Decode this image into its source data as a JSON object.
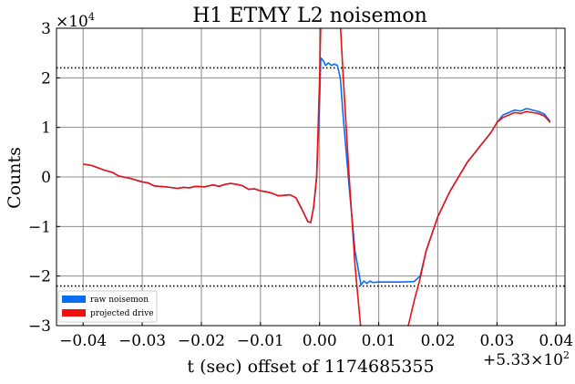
{
  "chart_data": {
    "type": "line",
    "title": "H1 ETMY L2 noisemon",
    "xlabel": "t (sec) offset of 1174685355",
    "ylabel": "Counts",
    "x_offset_text": "+5.33×10",
    "x_offset_exp": "2",
    "y_scale_text": "×10",
    "y_scale_exp": "4",
    "xlim": [
      -0.0445,
      0.0415
    ],
    "ylim": [
      -30000,
      30000
    ],
    "x_ticks": [
      -0.04,
      -0.03,
      -0.02,
      -0.01,
      0.0,
      0.01,
      0.02,
      0.03,
      0.04
    ],
    "x_tick_labels": [
      "−0.04",
      "−0.03",
      "−0.02",
      "−0.01",
      "0.00",
      "0.01",
      "0.02",
      "0.03",
      "0.04"
    ],
    "y_ticks": [
      -30000,
      -20000,
      -10000,
      0,
      10000,
      20000,
      30000
    ],
    "y_tick_labels": [
      "−3",
      "−2",
      "−1",
      "0",
      "1",
      "2",
      "3"
    ],
    "grid": true,
    "legend_position": "bottom-left",
    "thresholds": [
      22000,
      -22000
    ],
    "series": [
      {
        "name": "raw noisemon",
        "color": "#0a6ef5",
        "points": [
          [
            -0.04,
            2600
          ],
          [
            -0.0385,
            2300
          ],
          [
            -0.0365,
            1400
          ],
          [
            -0.035,
            900
          ],
          [
            -0.034,
            200
          ],
          [
            -0.032,
            -300
          ],
          [
            -0.03,
            -1000
          ],
          [
            -0.029,
            -1200
          ],
          [
            -0.028,
            -1800
          ],
          [
            -0.026,
            -2000
          ],
          [
            -0.024,
            -2300
          ],
          [
            -0.023,
            -2100
          ],
          [
            -0.022,
            -2200
          ],
          [
            -0.021,
            -1900
          ],
          [
            -0.0195,
            -2000
          ],
          [
            -0.018,
            -1600
          ],
          [
            -0.017,
            -1900
          ],
          [
            -0.016,
            -1500
          ],
          [
            -0.015,
            -1300
          ],
          [
            -0.014,
            -1500
          ],
          [
            -0.013,
            -1800
          ],
          [
            -0.012,
            -2500
          ],
          [
            -0.011,
            -2400
          ],
          [
            -0.01,
            -2800
          ],
          [
            -0.009,
            -3000
          ],
          [
            -0.008,
            -3300
          ],
          [
            -0.007,
            -3800
          ],
          [
            -0.005,
            -3600
          ],
          [
            -0.004,
            -4200
          ],
          [
            -0.003,
            -6500
          ],
          [
            -0.002,
            -9000
          ],
          [
            -0.0015,
            -9200
          ],
          [
            -0.001,
            -6000
          ],
          [
            -0.0005,
            0
          ],
          [
            0.0,
            15000
          ],
          [
            0.0002,
            24000
          ],
          [
            0.0006,
            23500
          ],
          [
            0.001,
            22500
          ],
          [
            0.0015,
            23000
          ],
          [
            0.002,
            22500
          ],
          [
            0.0025,
            22800
          ],
          [
            0.003,
            22500
          ],
          [
            0.0035,
            20000
          ],
          [
            0.004,
            12000
          ],
          [
            0.005,
            -2000
          ],
          [
            0.006,
            -15000
          ],
          [
            0.007,
            -21800
          ],
          [
            0.0075,
            -21000
          ],
          [
            0.008,
            -21500
          ],
          [
            0.0085,
            -21000
          ],
          [
            0.009,
            -21300
          ],
          [
            0.01,
            -21200
          ],
          [
            0.012,
            -21200
          ],
          [
            0.014,
            -21200
          ],
          [
            0.016,
            -21100
          ],
          [
            0.017,
            -20000
          ],
          [
            0.018,
            -15000
          ],
          [
            0.02,
            -8000
          ],
          [
            0.022,
            -3000
          ],
          [
            0.025,
            3000
          ],
          [
            0.027,
            6000
          ],
          [
            0.029,
            9000
          ],
          [
            0.03,
            11000
          ],
          [
            0.031,
            12500
          ],
          [
            0.032,
            13000
          ],
          [
            0.033,
            13500
          ],
          [
            0.034,
            13300
          ],
          [
            0.035,
            13800
          ],
          [
            0.036,
            13500
          ],
          [
            0.037,
            13200
          ],
          [
            0.038,
            12700
          ],
          [
            0.039,
            11200
          ]
        ]
      },
      {
        "name": "projected drive",
        "color": "#ee1111",
        "points": [
          [
            -0.04,
            2600
          ],
          [
            -0.0385,
            2300
          ],
          [
            -0.0365,
            1400
          ],
          [
            -0.035,
            900
          ],
          [
            -0.034,
            200
          ],
          [
            -0.032,
            -300
          ],
          [
            -0.03,
            -1000
          ],
          [
            -0.029,
            -1200
          ],
          [
            -0.028,
            -1800
          ],
          [
            -0.026,
            -2000
          ],
          [
            -0.024,
            -2300
          ],
          [
            -0.023,
            -2100
          ],
          [
            -0.022,
            -2200
          ],
          [
            -0.021,
            -1900
          ],
          [
            -0.0195,
            -2000
          ],
          [
            -0.018,
            -1600
          ],
          [
            -0.017,
            -1900
          ],
          [
            -0.016,
            -1500
          ],
          [
            -0.015,
            -1300
          ],
          [
            -0.014,
            -1500
          ],
          [
            -0.013,
            -1800
          ],
          [
            -0.012,
            -2500
          ],
          [
            -0.011,
            -2400
          ],
          [
            -0.01,
            -2800
          ],
          [
            -0.009,
            -3000
          ],
          [
            -0.008,
            -3300
          ],
          [
            -0.007,
            -3800
          ],
          [
            -0.005,
            -3600
          ],
          [
            -0.004,
            -4200
          ],
          [
            -0.003,
            -6500
          ],
          [
            -0.002,
            -9000
          ],
          [
            -0.0015,
            -9200
          ],
          [
            -0.001,
            -6000
          ],
          [
            -0.0005,
            0
          ],
          [
            0.0,
            20000
          ],
          [
            0.0002,
            31000
          ],
          [
            0.0015,
            40000
          ],
          [
            0.003,
            38000
          ],
          [
            0.0035,
            31000
          ],
          [
            0.004,
            20000
          ],
          [
            0.005,
            0
          ],
          [
            0.006,
            -18000
          ],
          [
            0.007,
            -31000
          ],
          [
            0.008,
            -40000
          ],
          [
            0.012,
            -40000
          ],
          [
            0.014,
            -35000
          ],
          [
            0.015,
            -30000
          ],
          [
            0.016,
            -25000
          ],
          [
            0.017,
            -20500
          ],
          [
            0.018,
            -15000
          ],
          [
            0.02,
            -8000
          ],
          [
            0.022,
            -3000
          ],
          [
            0.025,
            3000
          ],
          [
            0.027,
            6000
          ],
          [
            0.029,
            9000
          ],
          [
            0.03,
            11000
          ],
          [
            0.031,
            12000
          ],
          [
            0.032,
            12500
          ],
          [
            0.033,
            13000
          ],
          [
            0.034,
            12800
          ],
          [
            0.035,
            13200
          ],
          [
            0.036,
            13000
          ],
          [
            0.037,
            12800
          ],
          [
            0.038,
            12300
          ],
          [
            0.039,
            11000
          ]
        ]
      }
    ]
  }
}
